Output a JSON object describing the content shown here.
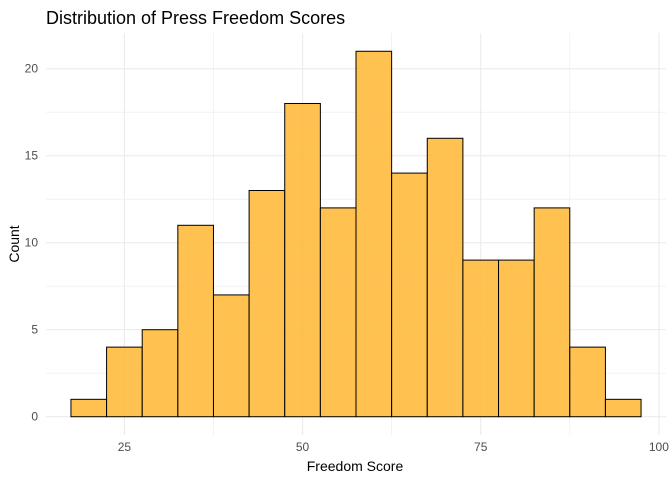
{
  "chart_data": {
    "type": "bar",
    "title": "Distribution of Press Freedom Scores",
    "xlabel": "Freedom Score",
    "ylabel": "Count",
    "bins": [
      {
        "x0": 17.5,
        "x1": 22.5,
        "count": 1
      },
      {
        "x0": 22.5,
        "x1": 27.5,
        "count": 4
      },
      {
        "x0": 27.5,
        "x1": 32.5,
        "count": 5
      },
      {
        "x0": 32.5,
        "x1": 37.5,
        "count": 11
      },
      {
        "x0": 37.5,
        "x1": 42.5,
        "count": 7
      },
      {
        "x0": 42.5,
        "x1": 47.5,
        "count": 13
      },
      {
        "x0": 47.5,
        "x1": 52.5,
        "count": 18
      },
      {
        "x0": 52.5,
        "x1": 57.5,
        "count": 12
      },
      {
        "x0": 57.5,
        "x1": 62.5,
        "count": 21
      },
      {
        "x0": 62.5,
        "x1": 67.5,
        "count": 14
      },
      {
        "x0": 67.5,
        "x1": 72.5,
        "count": 16
      },
      {
        "x0": 72.5,
        "x1": 77.5,
        "count": 9
      },
      {
        "x0": 77.5,
        "x1": 82.5,
        "count": 9
      },
      {
        "x0": 82.5,
        "x1": 87.5,
        "count": 12
      },
      {
        "x0": 87.5,
        "x1": 92.5,
        "count": 4
      },
      {
        "x0": 92.5,
        "x1": 97.5,
        "count": 1
      }
    ],
    "xlim": [
      14.0,
      101.0
    ],
    "ylim": [
      -1.05,
      22.05
    ],
    "x_ticks": [
      25,
      50,
      75,
      100
    ],
    "y_ticks": [
      0,
      5,
      10,
      15,
      20
    ],
    "grid": true,
    "legend": "none",
    "colors": {
      "fill": "#FFB732",
      "stroke": "#000000",
      "grid": "#ebebeb"
    }
  }
}
